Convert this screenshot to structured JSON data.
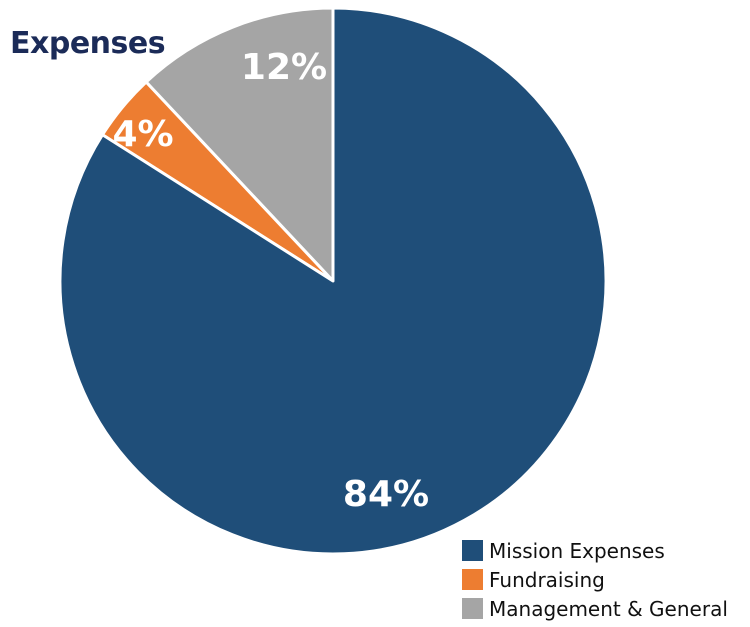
{
  "chart_data": {
    "type": "pie",
    "title": "Expenses",
    "slices": [
      {
        "name": "Management & General",
        "value": 12,
        "label": "12%",
        "color": "#a5a5a5"
      },
      {
        "name": "Fundraising",
        "value": 4,
        "label": "4%",
        "color": "#ed7d31"
      },
      {
        "name": "Mission Expenses",
        "value": 84,
        "label": "84%",
        "color": "#1f4e79"
      }
    ],
    "legend": {
      "placement": "bottom-right",
      "entries": [
        {
          "name": "Mission Expenses",
          "color": "#1f4e79"
        },
        {
          "name": "Fundraising",
          "color": "#ed7d31"
        },
        {
          "name": "Management & General",
          "color": "#a5a5a5"
        }
      ]
    }
  }
}
